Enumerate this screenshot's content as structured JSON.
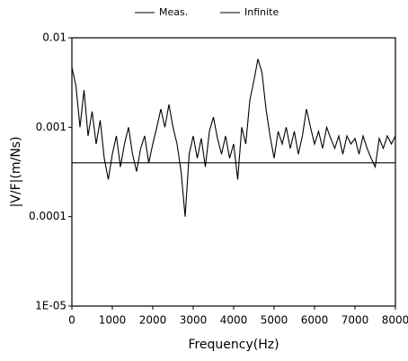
{
  "chart_data": {
    "type": "line",
    "xlabel": "Frequency(Hz)",
    "ylabel": "|V/F|(m/Ns)",
    "xlim": [
      0,
      8000
    ],
    "xticks": [
      0,
      1000,
      2000,
      3000,
      4000,
      5000,
      6000,
      7000,
      8000
    ],
    "ylim": [
      1e-05,
      0.01
    ],
    "yticks": [
      0.01,
      0.001,
      0.0001,
      {
        "value": 1e-05,
        "label": "1E-05"
      }
    ],
    "ylog": true,
    "grid": false,
    "legend": "top",
    "series": [
      {
        "name": "Meas.",
        "color": "#000000",
        "x": [
          0,
          100,
          200,
          300,
          400,
          500,
          600,
          700,
          800,
          900,
          1000,
          1100,
          1200,
          1300,
          1400,
          1500,
          1600,
          1700,
          1800,
          1900,
          2000,
          2100,
          2200,
          2300,
          2400,
          2500,
          2600,
          2700,
          2800,
          2900,
          3000,
          3100,
          3200,
          3300,
          3400,
          3500,
          3600,
          3700,
          3800,
          3900,
          4000,
          4100,
          4200,
          4300,
          4400,
          4500,
          4600,
          4700,
          4800,
          4900,
          5000,
          5100,
          5200,
          5300,
          5400,
          5500,
          5600,
          5700,
          5800,
          5900,
          6000,
          6100,
          6200,
          6300,
          6400,
          6500,
          6600,
          6700,
          6800,
          6900,
          7000,
          7100,
          7200,
          7300,
          7400,
          7500,
          7600,
          7700,
          7800,
          7900,
          8000
        ],
        "values": [
          0.0047,
          0.0029,
          0.001,
          0.0026,
          0.0008,
          0.0015,
          0.00065,
          0.0012,
          0.00045,
          0.00026,
          0.0005,
          0.0008,
          0.00036,
          0.00065,
          0.001,
          0.0005,
          0.00032,
          0.00058,
          0.0008,
          0.0004,
          0.00065,
          0.001,
          0.0016,
          0.001,
          0.0018,
          0.001,
          0.00065,
          0.00032,
          0.0001,
          0.0005,
          0.0008,
          0.00045,
          0.00075,
          0.00036,
          0.0009,
          0.0013,
          0.00075,
          0.0005,
          0.0008,
          0.00045,
          0.00065,
          0.00026,
          0.001,
          0.00065,
          0.002,
          0.0033,
          0.0058,
          0.0041,
          0.0016,
          0.0008,
          0.00045,
          0.0009,
          0.00065,
          0.001,
          0.00058,
          0.0009,
          0.0005,
          0.0008,
          0.0016,
          0.001,
          0.00065,
          0.0009,
          0.00058,
          0.001,
          0.00075,
          0.00058,
          0.0008,
          0.0005,
          0.0008,
          0.00065,
          0.00075,
          0.0005,
          0.0008,
          0.00058,
          0.00045,
          0.00036,
          0.00075,
          0.00058,
          0.0008,
          0.00065,
          0.0008
        ]
      },
      {
        "name": "Infinite",
        "color": "#000000",
        "x": [
          0,
          8000
        ],
        "values": [
          0.0004,
          0.0004
        ]
      }
    ]
  }
}
